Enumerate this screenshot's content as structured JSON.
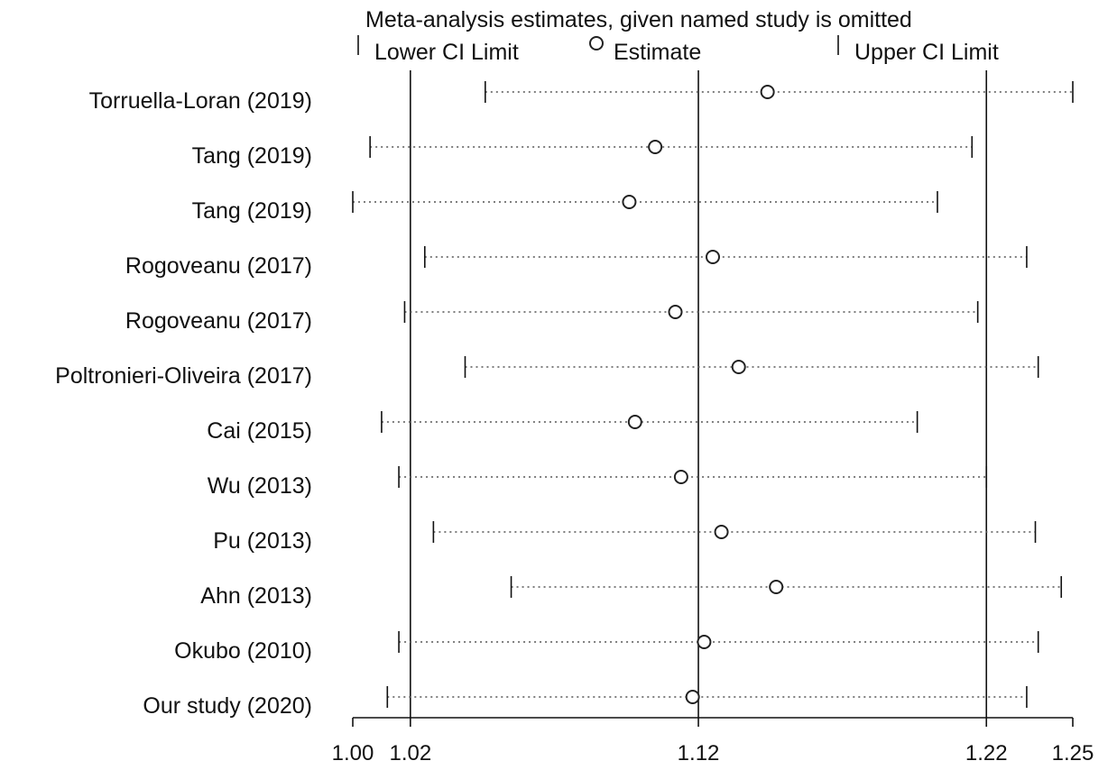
{
  "chart_data": {
    "type": "forest",
    "title": "Meta-analysis estimates, given named study is omitted",
    "legend": {
      "lower": "Lower CI Limit",
      "estimate": "Estimate",
      "upper": "Upper CI Limit"
    },
    "xticks": [
      "1.00",
      "1.02",
      "1.12",
      "1.22",
      "1.25"
    ],
    "xtick_values": [
      1.0,
      1.02,
      1.12,
      1.22,
      1.25
    ],
    "reference_lines": [
      1.02,
      1.12,
      1.22
    ],
    "xlim": [
      1.0,
      1.25
    ],
    "studies": [
      {
        "label": "Torruella-Loran (2019)",
        "lower": 1.046,
        "estimate": 1.144,
        "upper": 1.25
      },
      {
        "label": "Tang (2019)",
        "lower": 1.006,
        "estimate": 1.105,
        "upper": 1.215
      },
      {
        "label": "Tang (2019)",
        "lower": 1.0,
        "estimate": 1.096,
        "upper": 1.203
      },
      {
        "label": "Rogoveanu (2017)",
        "lower": 1.025,
        "estimate": 1.125,
        "upper": 1.234
      },
      {
        "label": "Rogoveanu (2017)",
        "lower": 1.018,
        "estimate": 1.112,
        "upper": 1.217
      },
      {
        "label": "Poltronieri-Oliveira (2017)",
        "lower": 1.039,
        "estimate": 1.134,
        "upper": 1.238
      },
      {
        "label": "Cai (2015)",
        "lower": 1.01,
        "estimate": 1.098,
        "upper": 1.196
      },
      {
        "label": "Wu (2013)",
        "lower": 1.016,
        "estimate": 1.114,
        "upper": 1.22
      },
      {
        "label": "Pu (2013)",
        "lower": 1.028,
        "estimate": 1.128,
        "upper": 1.237
      },
      {
        "label": "Ahn (2013)",
        "lower": 1.055,
        "estimate": 1.147,
        "upper": 1.246
      },
      {
        "label": "Okubo (2010)",
        "lower": 1.016,
        "estimate": 1.122,
        "upper": 1.238
      },
      {
        "label": "Our study (2020)",
        "lower": 1.012,
        "estimate": 1.118,
        "upper": 1.234
      }
    ]
  }
}
